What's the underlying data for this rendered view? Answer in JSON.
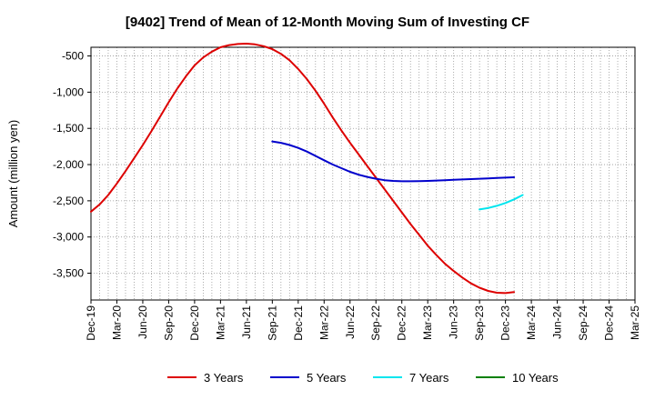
{
  "chart_data": {
    "type": "line",
    "title": "[9402]  Trend of Mean of 12-Month Moving Sum of Investing CF",
    "xlabel": "",
    "ylabel": "Amount (million yen)",
    "ylim": [
      -3870,
      -380
    ],
    "y_ticks": [
      -500,
      -1000,
      -1500,
      -2000,
      -2500,
      -3000,
      -3500
    ],
    "y_tick_labels": [
      "-500",
      "-1,000",
      "-1,500",
      "-2,000",
      "-2,500",
      "-3,000",
      "-3,500"
    ],
    "x_tick_labels": [
      "Dec-19",
      "Mar-20",
      "Jun-20",
      "Sep-20",
      "Dec-20",
      "Mar-21",
      "Jun-21",
      "Sep-21",
      "Dec-21",
      "Mar-22",
      "Jun-22",
      "Sep-22",
      "Dec-22",
      "Mar-23",
      "Jun-23",
      "Sep-23",
      "Dec-23",
      "Mar-24",
      "Jun-24",
      "Sep-24",
      "Dec-24",
      "Mar-25"
    ],
    "grid": true,
    "legend_position": "bottom",
    "series": [
      {
        "name": "3 Years",
        "color": "#dd0000",
        "start_index": 0,
        "values": [
          -2650,
          -2550,
          -2420,
          -2260,
          -2090,
          -1910,
          -1730,
          -1540,
          -1340,
          -1140,
          -950,
          -780,
          -630,
          -520,
          -440,
          -380,
          -350,
          -335,
          -330,
          -340,
          -365,
          -405,
          -470,
          -560,
          -680,
          -820,
          -980,
          -1160,
          -1350,
          -1530,
          -1700,
          -1860,
          -2020,
          -2180,
          -2340,
          -2500,
          -2660,
          -2820,
          -2970,
          -3120,
          -3250,
          -3370,
          -3470,
          -3560,
          -3640,
          -3700,
          -3745,
          -3770,
          -3775,
          -3760
        ]
      },
      {
        "name": "5 Years",
        "color": "#0000cc",
        "start_index": 21,
        "values": [
          -1680,
          -1700,
          -1730,
          -1770,
          -1820,
          -1880,
          -1940,
          -2000,
          -2050,
          -2100,
          -2140,
          -2170,
          -2195,
          -2215,
          -2225,
          -2230,
          -2230,
          -2228,
          -2225,
          -2220,
          -2215,
          -2210,
          -2205,
          -2200,
          -2195,
          -2190,
          -2185,
          -2180,
          -2175
        ]
      },
      {
        "name": "7 Years",
        "color": "#00e5ee",
        "start_index": 45,
        "values": [
          -2620,
          -2600,
          -2570,
          -2530,
          -2480,
          -2420
        ]
      },
      {
        "name": "10 Years",
        "color": "#008000",
        "start_index": 0,
        "values": []
      }
    ]
  }
}
